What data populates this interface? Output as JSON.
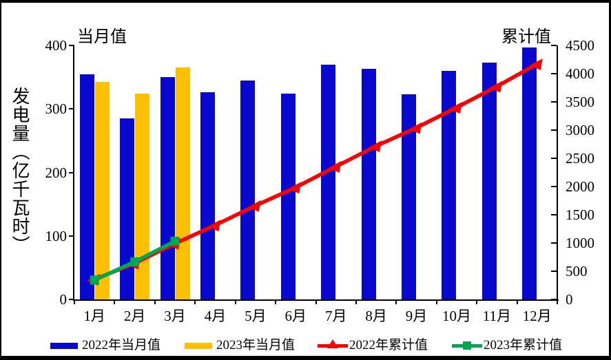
{
  "chart_data": {
    "type": "combo-bar-line",
    "categories": [
      "1月",
      "2月",
      "3月",
      "4月",
      "5月",
      "6月",
      "7月",
      "8月",
      "9月",
      "10月",
      "11月",
      "12月"
    ],
    "left_axis": {
      "title": "当月值",
      "axis_label": "发电量（亿千瓦时）",
      "min": 0,
      "max": 400,
      "step": 100,
      "ticks": [
        "0",
        "100",
        "200",
        "300",
        "400"
      ]
    },
    "right_axis": {
      "title": "累计值",
      "min": 0,
      "max": 4500,
      "step": 500,
      "ticks": [
        "0",
        "500",
        "1000",
        "1500",
        "2000",
        "2500",
        "3000",
        "3500",
        "4000",
        "4500"
      ]
    },
    "grid": false,
    "legend_position": "bottom",
    "series": [
      {
        "name": "2022年当月值",
        "type": "bar",
        "axis": "left",
        "marker": "none",
        "color": "#0808CE",
        "values": [
          355,
          285,
          350,
          326,
          345,
          324,
          370,
          363,
          323,
          360,
          373,
          397
        ]
      },
      {
        "name": "2023年当月值",
        "type": "bar",
        "axis": "left",
        "marker": "none",
        "color": "#FFC000",
        "values": [
          343,
          324,
          365,
          null,
          null,
          null,
          null,
          null,
          null,
          null,
          null,
          null
        ]
      },
      {
        "name": "2022年累计值",
        "type": "line",
        "axis": "right",
        "marker": "triangle",
        "color": "#FF0000",
        "values": [
          355,
          640,
          990,
          1316,
          1661,
          1985,
          2355,
          2718,
          3041,
          3401,
          3774,
          4171
        ]
      },
      {
        "name": "2023年累计值",
        "type": "line",
        "axis": "right",
        "marker": "square",
        "color": "#00A651",
        "values": [
          343,
          667,
          1032,
          null,
          null,
          null,
          null,
          null,
          null,
          null,
          null,
          null
        ]
      }
    ]
  }
}
